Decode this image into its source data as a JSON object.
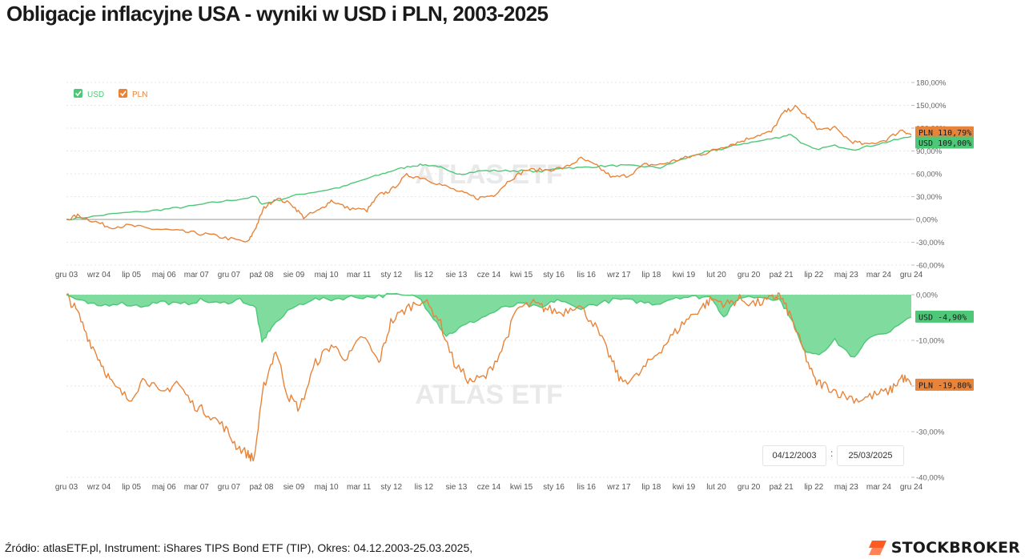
{
  "title": "Obligacje inflacyjne USA - wyniki w USD i PLN, 2003-2025",
  "footer": "Źródło: atlasETF.pl, Instrument: iShares TIPS Bond ETF (TIP), Okres: 04.12.2003-25.03.2025,",
  "brand": "STOCKBROKER",
  "watermark": "ATLAS ETF",
  "date_range": {
    "from": "04/12/2003",
    "separator": ":",
    "to": "25/03/2025"
  },
  "colors": {
    "usd": "#4ec878",
    "pln": "#e8843a",
    "usd_fill": "#79d99a",
    "axis": "#999999",
    "grid": "#e6e6e6",
    "brand": "#ff5a1f"
  },
  "chart_data": [
    {
      "type": "line",
      "title": "",
      "x_tick_labels": [
        "gru 03",
        "wrz 04",
        "lip 05",
        "maj 06",
        "mar 07",
        "gru 07",
        "paź 08",
        "sie 09",
        "maj 10",
        "mar 11",
        "sty 12",
        "lis 12",
        "sie 13",
        "cze 14",
        "kwi 15",
        "sty 16",
        "lis 16",
        "wrz 17",
        "lip 18",
        "kwi 19",
        "lut 20",
        "gru 20",
        "paź 21",
        "lip 22",
        "maj 23",
        "mar 24",
        "gru 24"
      ],
      "y_tick_labels": [
        "180,00%",
        "150,00%",
        "120,00%",
        "90,00%",
        "60,00%",
        "30,00%",
        "0,00%",
        "-30,00%",
        "-60,00%"
      ],
      "ylim": [
        -60,
        180
      ],
      "legend": {
        "position": "top-left",
        "items": [
          "USD",
          "PLN"
        ]
      },
      "end_labels": [
        {
          "series": "PLN",
          "text": "PLN 110,79%"
        },
        {
          "series": "USD",
          "text": "USD 109,00%"
        }
      ],
      "series": [
        {
          "name": "USD",
          "x": [
            2003.92,
            2004.6,
            2005.2,
            2006.0,
            2006.5,
            2007.0,
            2007.6,
            2008.2,
            2008.7,
            2008.85,
            2009.3,
            2009.8,
            2010.4,
            2010.9,
            2011.4,
            2011.9,
            2012.2,
            2012.6,
            2012.9,
            2013.3,
            2013.6,
            2013.9,
            2014.4,
            2014.9,
            2015.4,
            2015.9,
            2016.4,
            2016.9,
            2017.4,
            2017.9,
            2018.4,
            2018.9,
            2019.3,
            2019.9,
            2020.2,
            2020.5,
            2020.9,
            2021.4,
            2021.9,
            2022.2,
            2022.5,
            2022.8,
            2023.3,
            2023.8,
            2024.3,
            2024.8,
            2025.23
          ],
          "y": [
            0,
            4,
            8,
            11,
            14,
            17,
            22,
            26,
            30,
            20,
            26,
            33,
            38,
            43,
            52,
            60,
            65,
            70,
            72,
            70,
            62,
            60,
            64,
            64,
            64,
            63,
            68,
            68,
            70,
            71,
            70,
            68,
            76,
            87,
            90,
            93,
            99,
            103,
            108,
            112,
            99,
            92,
            97,
            92,
            98,
            104,
            109
          ]
        },
        {
          "name": "PLN",
          "x": [
            2003.92,
            2004.2,
            2004.6,
            2005.0,
            2005.5,
            2006.0,
            2006.5,
            2007.0,
            2007.5,
            2008.0,
            2008.5,
            2008.7,
            2008.9,
            2009.2,
            2009.6,
            2009.9,
            2010.3,
            2010.6,
            2011.0,
            2011.5,
            2011.8,
            2012.1,
            2012.5,
            2012.9,
            2013.4,
            2013.9,
            2014.3,
            2014.7,
            2015.1,
            2015.5,
            2016.0,
            2016.5,
            2016.9,
            2017.3,
            2017.7,
            2018.1,
            2018.5,
            2018.9,
            2019.3,
            2019.7,
            2020.1,
            2020.5,
            2020.9,
            2021.3,
            2021.7,
            2022.0,
            2022.3,
            2022.6,
            2022.9,
            2023.3,
            2023.7,
            2024.1,
            2024.6,
            2025.0,
            2025.23
          ],
          "y": [
            0,
            5,
            -2,
            -10,
            -8,
            -12,
            -14,
            -17,
            -20,
            -25,
            -30,
            -10,
            15,
            28,
            20,
            3,
            12,
            25,
            15,
            12,
            32,
            38,
            58,
            55,
            45,
            35,
            28,
            32,
            52,
            65,
            65,
            68,
            80,
            70,
            55,
            58,
            72,
            72,
            78,
            83,
            88,
            96,
            102,
            110,
            115,
            140,
            148,
            135,
            118,
            120,
            103,
            98,
            105,
            118,
            110.79
          ]
        }
      ]
    },
    {
      "type": "area",
      "title": "drawdown",
      "x_tick_labels": [
        "gru 03",
        "wrz 04",
        "lip 05",
        "maj 06",
        "mar 07",
        "gru 07",
        "paź 08",
        "sie 09",
        "maj 10",
        "mar 11",
        "sty 12",
        "lis 12",
        "sie 13",
        "cze 14",
        "kwi 15",
        "sty 16",
        "lis 16",
        "wrz 17",
        "lip 18",
        "kwi 19",
        "lut 20",
        "gru 20",
        "paź 21",
        "lip 22",
        "maj 23",
        "mar 24",
        "gru 24"
      ],
      "y_tick_labels": [
        "0,00%",
        "-10,00%",
        "-20,00%",
        "-30,00%",
        "-40,00%"
      ],
      "ylim": [
        -40,
        0
      ],
      "end_labels": [
        {
          "series": "USD",
          "text": "USD  -4,90%"
        },
        {
          "series": "PLN",
          "text": "PLN -19,80%"
        }
      ],
      "series": [
        {
          "name": "USD",
          "x": [
            2003.92,
            2004.3,
            2004.7,
            2005.2,
            2005.8,
            2006.3,
            2006.8,
            2007.3,
            2007.8,
            2008.3,
            2008.7,
            2008.85,
            2009.1,
            2009.6,
            2010.1,
            2010.6,
            2011.1,
            2011.6,
            2012.1,
            2012.8,
            2013.1,
            2013.5,
            2013.9,
            2014.4,
            2014.9,
            2015.4,
            2015.9,
            2016.3,
            2016.8,
            2017.3,
            2017.8,
            2018.3,
            2018.8,
            2019.3,
            2019.8,
            2020.2,
            2020.5,
            2020.9,
            2021.5,
            2021.9,
            2022.2,
            2022.5,
            2022.9,
            2023.3,
            2023.8,
            2024.2,
            2024.7,
            2025.23
          ],
          "y": [
            0,
            -1.5,
            -2.5,
            -1.8,
            -2.5,
            -1.5,
            -2.2,
            -1.2,
            -2,
            -1,
            -3,
            -10.5,
            -7,
            -3,
            -1,
            -1,
            -0.5,
            -0.5,
            0,
            -0.5,
            -4,
            -9,
            -7,
            -5,
            -3,
            -2,
            -3,
            -1,
            -3,
            -2,
            -1,
            -1.5,
            -2,
            -0.5,
            -0.5,
            -0.5,
            -5,
            -0.5,
            -0.5,
            -1,
            -5,
            -12,
            -13,
            -10,
            -14,
            -9,
            -8,
            -4.9
          ]
        },
        {
          "name": "PLN",
          "x": [
            2003.92,
            2004.2,
            2004.5,
            2004.8,
            2005.1,
            2005.5,
            2005.9,
            2006.3,
            2006.7,
            2007.1,
            2007.5,
            2007.9,
            2008.2,
            2008.5,
            2008.65,
            2008.9,
            2009.2,
            2009.5,
            2009.8,
            2010.2,
            2010.6,
            2011.0,
            2011.4,
            2011.8,
            2012.1,
            2012.5,
            2012.9,
            2013.3,
            2013.7,
            2014.1,
            2014.5,
            2014.9,
            2015.3,
            2015.7,
            2016.0,
            2016.4,
            2016.8,
            2017.2,
            2017.6,
            2017.9,
            2018.3,
            2018.7,
            2019.1,
            2019.5,
            2019.9,
            2020.2,
            2020.6,
            2020.9,
            2021.3,
            2021.7,
            2021.9,
            2022.2,
            2022.5,
            2022.8,
            2023.1,
            2023.5,
            2023.9,
            2024.3,
            2024.7,
            2025.0,
            2025.23
          ],
          "y": [
            0,
            -4,
            -10,
            -15,
            -20,
            -23,
            -18,
            -22,
            -19,
            -24,
            -26,
            -29,
            -33,
            -35,
            -36,
            -20,
            -12,
            -22,
            -25,
            -15,
            -11,
            -14,
            -9,
            -15,
            -6,
            -3,
            -1,
            -5,
            -15,
            -19,
            -18,
            -12,
            -3,
            -2,
            -3,
            -4,
            -2,
            -6,
            -13,
            -19,
            -18,
            -14,
            -10,
            -6,
            -3,
            -1,
            -2,
            -1,
            -2,
            -1,
            0,
            -5,
            -12,
            -19,
            -20,
            -22,
            -23,
            -22,
            -21,
            -18,
            -19.8
          ]
        }
      ]
    }
  ]
}
